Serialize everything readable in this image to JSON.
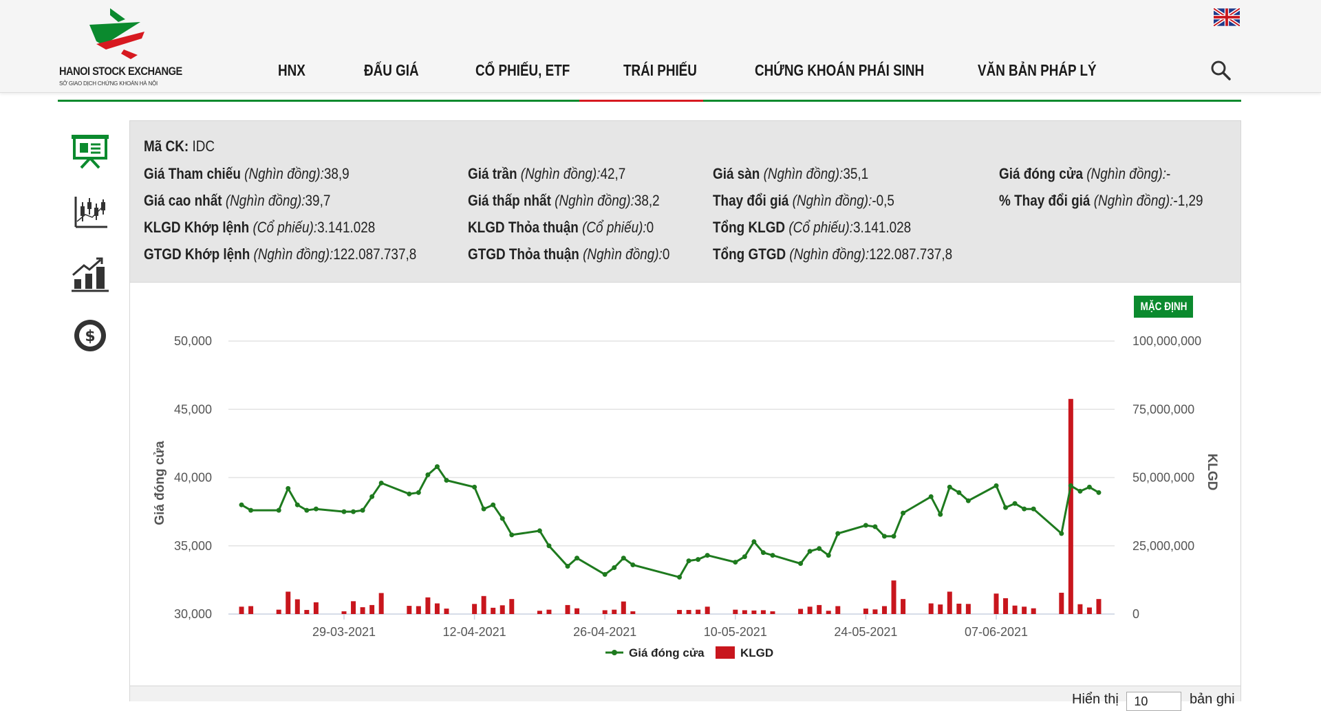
{
  "header": {
    "logo_title": "HANOI STOCK EXCHANGE",
    "logo_subtitle": "SỞ GIAO DỊCH CHỨNG KHOÁN HÀ NỘI",
    "language_flag": "uk-flag-icon",
    "nav": [
      "HNX",
      "ĐẤU GIÁ",
      "CỔ PHIẾU, ETF",
      "TRÁI PHIẾU",
      "CHỨNG KHOÁN PHÁI SINH",
      "VĂN BẢN PHÁP LÝ"
    ],
    "active_nav": "TRÁI PHIẾU",
    "search_icon": "search-icon"
  },
  "sidebar": {
    "icons": [
      "presentation-board-icon",
      "candlestick-chart-icon",
      "bar-growth-chart-icon",
      "dollar-coin-icon"
    ]
  },
  "info": {
    "code_label": "Mã CK:",
    "code_value": "IDC",
    "rows": [
      [
        {
          "label": "Giá Tham chiếu",
          "unit": "(Nghìn đồng):",
          "value": "38,9"
        },
        {
          "label": "Giá trần",
          "unit": "(Nghìn đồng):",
          "value": "42,7"
        },
        {
          "label": "Giá sàn",
          "unit": "(Nghìn đồng):",
          "value": "35,1"
        },
        {
          "label": "Giá đóng cửa",
          "unit": "(Nghìn đồng):",
          "value": "-"
        }
      ],
      [
        {
          "label": "Giá cao nhất",
          "unit": "(Nghìn đồng):",
          "value": "39,7"
        },
        {
          "label": "Giá thấp nhất",
          "unit": "(Nghìn đồng):",
          "value": "38,2"
        },
        {
          "label": "Thay đổi giá",
          "unit": "(Nghìn đồng):",
          "value": "-0,5"
        },
        {
          "label": "% Thay đổi giá",
          "unit": "(Nghìn đồng):",
          "value": "-1,29"
        }
      ],
      [
        {
          "label": "KLGD Khớp lệnh",
          "unit": "(Cổ phiếu):",
          "value": "3.141.028"
        },
        {
          "label": "KLGD Thỏa thuận",
          "unit": "(Cổ phiếu):",
          "value": "0"
        },
        {
          "label": "Tổng KLGD",
          "unit": "(Cổ phiếu):",
          "value": "3.141.028"
        }
      ],
      [
        {
          "label": "GTGD Khớp lệnh",
          "unit": "(Nghìn đồng):",
          "value": "122.087.737,8"
        },
        {
          "label": "GTGD Thỏa thuận",
          "unit": "(Nghìn đồng):",
          "value": "0"
        },
        {
          "label": "Tổng GTGD",
          "unit": "(Nghìn đồng):",
          "value": "122.087.737,8"
        }
      ]
    ]
  },
  "chart_controls": {
    "default_label": "MẶC ĐỊNH"
  },
  "chart_data": {
    "type": "line",
    "xlabel": "",
    "ylabel": "Giá đóng cửa",
    "y2label": "KLGD",
    "ylim": [
      30000,
      50000
    ],
    "y2lim": [
      0,
      100000000
    ],
    "y_ticks": [
      "30,000",
      "35,000",
      "40,000",
      "45,000",
      "50,000"
    ],
    "y2_ticks": [
      "0",
      "25,000,000",
      "50,000,000",
      "75,000,000",
      "100,000,000"
    ],
    "x_ticks": [
      "29-03-2021",
      "12-04-2021",
      "26-04-2021",
      "10-05-2021",
      "24-05-2021",
      "07-06-2021"
    ],
    "legend": [
      "Giá đóng cửa",
      "KLGD"
    ],
    "legend_position": "bottom",
    "colors": {
      "price": "#1e7a1e",
      "volume": "#c8161d"
    },
    "series": [
      {
        "name": "Giá đóng cửa",
        "x": [
          "2021-03-18",
          "2021-03-19",
          "2021-03-22",
          "2021-03-23",
          "2021-03-24",
          "2021-03-25",
          "2021-03-26",
          "2021-03-29",
          "2021-03-30",
          "2021-03-31",
          "2021-04-01",
          "2021-04-02",
          "2021-04-05",
          "2021-04-06",
          "2021-04-07",
          "2021-04-08",
          "2021-04-09",
          "2021-04-12",
          "2021-04-13",
          "2021-04-14",
          "2021-04-15",
          "2021-04-16",
          "2021-04-19",
          "2021-04-20",
          "2021-04-22",
          "2021-04-23",
          "2021-04-26",
          "2021-04-27",
          "2021-04-28",
          "2021-04-29",
          "2021-05-04",
          "2021-05-05",
          "2021-05-06",
          "2021-05-07",
          "2021-05-10",
          "2021-05-11",
          "2021-05-12",
          "2021-05-13",
          "2021-05-14",
          "2021-05-17",
          "2021-05-18",
          "2021-05-19",
          "2021-05-20",
          "2021-05-21",
          "2021-05-24",
          "2021-05-25",
          "2021-05-26",
          "2021-05-27",
          "2021-05-28",
          "2021-05-31",
          "2021-06-01",
          "2021-06-02",
          "2021-06-03",
          "2021-06-04",
          "2021-06-07",
          "2021-06-08",
          "2021-06-09",
          "2021-06-10",
          "2021-06-11",
          "2021-06-14",
          "2021-06-15",
          "2021-06-16",
          "2021-06-17",
          "2021-06-18"
        ],
        "values": [
          38000,
          37600,
          37600,
          39200,
          38000,
          37600,
          37700,
          37500,
          37500,
          37600,
          38600,
          39600,
          38800,
          38900,
          40200,
          40800,
          39800,
          39300,
          37700,
          38000,
          37000,
          35800,
          36100,
          35000,
          33500,
          34100,
          32900,
          33400,
          34100,
          33600,
          32700,
          33900,
          34000,
          34300,
          33800,
          34200,
          35300,
          34500,
          34300,
          33700,
          34600,
          34800,
          34300,
          35900,
          36500,
          36400,
          35700,
          35700,
          37400,
          38600,
          37300,
          39300,
          38900,
          38300,
          39400,
          37800,
          38100,
          37700,
          37700,
          35900,
          39400,
          39000,
          39300,
          38900
        ]
      },
      {
        "name": "KLGD",
        "x": [
          "2021-03-18",
          "2021-03-19",
          "2021-03-22",
          "2021-03-23",
          "2021-03-24",
          "2021-03-25",
          "2021-03-26",
          "2021-03-29",
          "2021-03-30",
          "2021-03-31",
          "2021-04-01",
          "2021-04-02",
          "2021-04-05",
          "2021-04-06",
          "2021-04-07",
          "2021-04-08",
          "2021-04-09",
          "2021-04-12",
          "2021-04-13",
          "2021-04-14",
          "2021-04-15",
          "2021-04-16",
          "2021-04-19",
          "2021-04-20",
          "2021-04-22",
          "2021-04-23",
          "2021-04-26",
          "2021-04-27",
          "2021-04-28",
          "2021-04-29",
          "2021-05-04",
          "2021-05-05",
          "2021-05-06",
          "2021-05-07",
          "2021-05-10",
          "2021-05-11",
          "2021-05-12",
          "2021-05-13",
          "2021-05-14",
          "2021-05-17",
          "2021-05-18",
          "2021-05-19",
          "2021-05-20",
          "2021-05-21",
          "2021-05-24",
          "2021-05-25",
          "2021-05-26",
          "2021-05-27",
          "2021-05-28",
          "2021-05-31",
          "2021-06-01",
          "2021-06-02",
          "2021-06-03",
          "2021-06-04",
          "2021-06-07",
          "2021-06-08",
          "2021-06-09",
          "2021-06-10",
          "2021-06-11",
          "2021-06-14",
          "2021-06-15",
          "2021-06-16",
          "2021-06-17",
          "2021-06-18"
        ],
        "values": [
          2700000,
          2900000,
          1600000,
          8200000,
          5400000,
          1500000,
          4300000,
          1000000,
          4700000,
          2500000,
          3300000,
          7700000,
          3000000,
          2900000,
          6100000,
          3900000,
          2000000,
          3700000,
          6600000,
          2300000,
          3200000,
          5500000,
          1200000,
          1600000,
          3300000,
          2100000,
          1400000,
          1600000,
          4600000,
          1000000,
          1500000,
          1500000,
          1600000,
          2700000,
          1600000,
          1400000,
          1300000,
          1400000,
          1000000,
          1900000,
          2700000,
          3300000,
          1200000,
          2900000,
          2000000,
          1700000,
          2900000,
          12300000,
          5500000,
          3900000,
          3500000,
          8200000,
          3800000,
          3700000,
          7500000,
          5800000,
          3100000,
          2700000,
          2100000,
          7800000,
          78800000,
          3600000,
          2400000,
          5500000
        ]
      }
    ]
  },
  "pager": {
    "show_label": "Hiển thị",
    "per_page": "10",
    "records_label": "bản ghi"
  }
}
